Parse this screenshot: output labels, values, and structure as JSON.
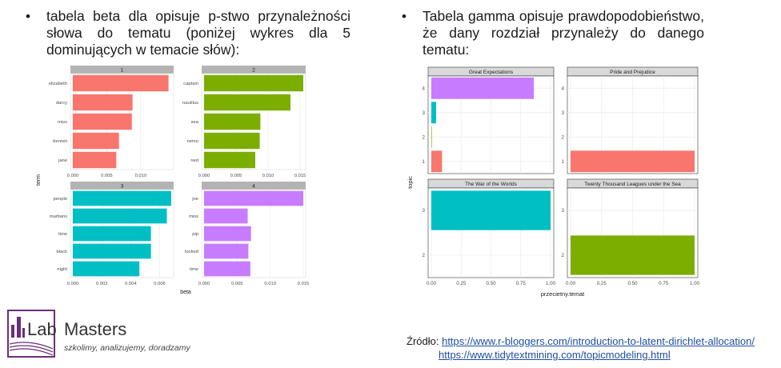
{
  "left_bullet": {
    "marker": "•",
    "text": "tabela beta dla opisuje p-stwo przynależności słowa do tematu (poniżej wykres dla 5 dominujących w temacie słów):"
  },
  "right_bullet": {
    "marker": "•",
    "text": "Tabela gamma opisuje prawdopodobieństwo, że dany rozdział przynależy do danego tematu:"
  },
  "logo": {
    "name_part1": "Lab",
    "name_part2": "Masters",
    "tagline": "szkolimy, analizujemy, doradzamy",
    "colors": {
      "purple": "#6b2d7b",
      "dark": "#333333"
    }
  },
  "source": {
    "label": "Źródło:",
    "link1": "https://www.r-bloggers.com/introduction-to-latent-dirichlet-allocation/",
    "link2": "https://www.tidytextmining.com/topicmodeling.html"
  },
  "chart_data": [
    {
      "type": "bar",
      "orientation": "horizontal",
      "xlabel": "beta",
      "ylabel": "term",
      "grid": true,
      "panels": [
        {
          "title": "1",
          "color": "#f8766d",
          "xlim": [
            0,
            0.0145
          ],
          "ticks": [
            0,
            0.005,
            0.01
          ],
          "tick_labels": [
            "0.000",
            "0.005",
            "0.010"
          ],
          "categories": [
            "elizabeth",
            "darcy",
            "miss",
            "bennet",
            "jane"
          ],
          "values": [
            0.0141,
            0.0088,
            0.0087,
            0.0068,
            0.0064
          ]
        },
        {
          "title": "2",
          "color": "#7cae00",
          "xlim": [
            0,
            0.0155
          ],
          "ticks": [
            0,
            0.005,
            0.01,
            0.015
          ],
          "tick_labels": [
            "0.000",
            "0.005",
            "0.010",
            "0.015"
          ],
          "categories": [
            "captain",
            "nautilus",
            "sea",
            "nemo",
            "ned"
          ],
          "values": [
            0.0155,
            0.0135,
            0.0088,
            0.0087,
            0.008
          ]
        },
        {
          "title": "3",
          "color": "#00bfc4",
          "xlim": [
            0,
            0.0068
          ],
          "ticks": [
            0,
            0.002,
            0.004,
            0.006
          ],
          "tick_labels": [
            "0.000",
            "0.002",
            "0.004",
            "0.006"
          ],
          "categories": [
            "people",
            "martians",
            "time",
            "black",
            "night"
          ],
          "values": [
            0.0068,
            0.0065,
            0.0054,
            0.0054,
            0.0046
          ]
        },
        {
          "title": "4",
          "color": "#c77cff",
          "xlim": [
            0,
            0.015
          ],
          "ticks": [
            0,
            0.005,
            0.01,
            0.015
          ],
          "tick_labels": [
            "0.000",
            "0.005",
            "0.010",
            "0.015"
          ],
          "categories": [
            "joe",
            "miss",
            "pip",
            "looked",
            "time"
          ],
          "values": [
            0.015,
            0.0066,
            0.0071,
            0.0067,
            0.007
          ]
        }
      ]
    },
    {
      "type": "bar",
      "orientation": "horizontal",
      "xlabel": "przecietny.temat",
      "ylabel": "topic",
      "grid": true,
      "xlim": [
        0,
        1
      ],
      "ticks": [
        0,
        0.25,
        0.5,
        0.75,
        1
      ],
      "tick_labels": [
        "0.00",
        "0.25",
        "0.50",
        "0.75",
        "1.00"
      ],
      "topics": [
        "1",
        "2",
        "3",
        "4"
      ],
      "topic_colors": [
        "#f8766d",
        "#7cae00",
        "#00bfc4",
        "#c77cff"
      ],
      "panels": [
        {
          "title": "Great Expectations",
          "values": [
            0.09,
            0.0,
            0.04,
            0.86
          ]
        },
        {
          "title": "Pride and Prejudice",
          "values": [
            1.0,
            0.0,
            0.0,
            0.0
          ]
        },
        {
          "title": "The War of the Worlds",
          "values": [
            0.0,
            0.0,
            1.0,
            0.0
          ]
        },
        {
          "title": "Twenty Thousand Leagues under the Sea",
          "values": [
            0.0,
            1.0,
            0.0,
            0.0
          ]
        }
      ]
    }
  ]
}
